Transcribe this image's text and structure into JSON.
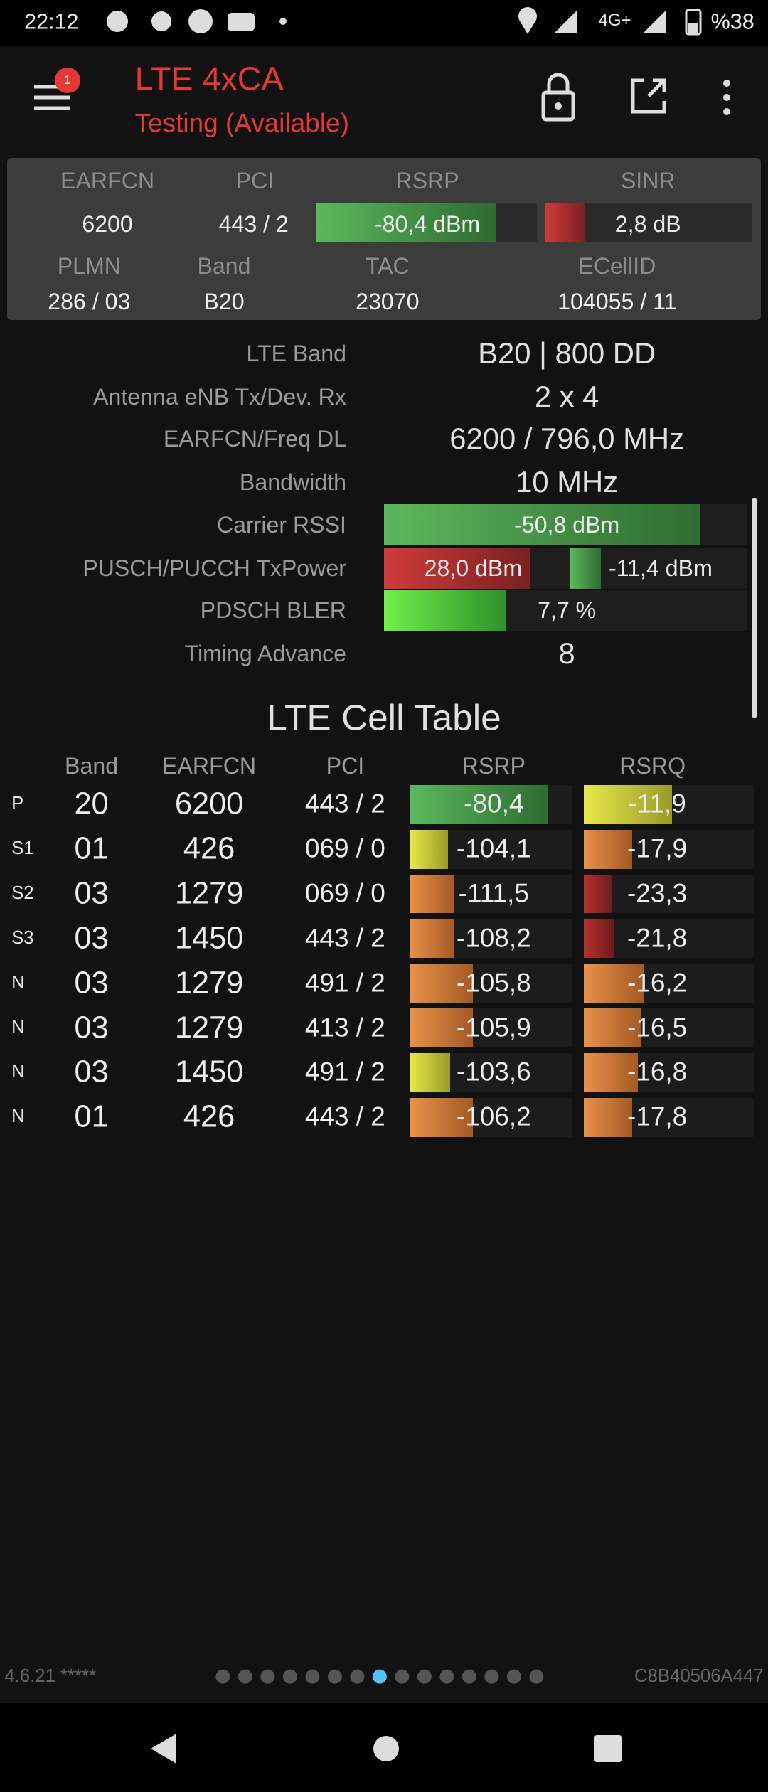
{
  "status_bar": {
    "time": "22:12",
    "network": "4G+",
    "battery": "%38"
  },
  "header": {
    "badge": "1",
    "title": "LTE 4xCA",
    "subtitle": "Testing (Available)"
  },
  "summary": {
    "row1": [
      {
        "label": "EARFCN",
        "value": "6200"
      },
      {
        "label": "PCI",
        "value": "443 / 2"
      },
      {
        "label": "RSRP",
        "value": "-80,4 dBm"
      },
      {
        "label": "SINR",
        "value": "2,8 dB"
      }
    ],
    "row2": [
      {
        "label": "PLMN",
        "value": "286 / 03"
      },
      {
        "label": "Band",
        "value": "B20"
      },
      {
        "label": "TAC",
        "value": "23070"
      },
      {
        "label": "ECellID",
        "value": "104055 / 11"
      }
    ]
  },
  "details": [
    {
      "label": "LTE Band",
      "values": [
        "B20 | 800 DD"
      ]
    },
    {
      "label": "Antenna eNB Tx/Dev. Rx",
      "values": [
        "2 x 4"
      ]
    },
    {
      "label": "EARFCN/Freq DL",
      "values": [
        "6200 / 796,0 MHz"
      ]
    },
    {
      "label": "Bandwidth",
      "values": [
        "10 MHz"
      ]
    },
    {
      "label": "Carrier RSSI",
      "values": [
        "-50,8 dBm"
      ]
    },
    {
      "label": "PUSCH/PUCCH TxPower",
      "values": [
        "28,0 dBm",
        "-11,4 dBm"
      ]
    },
    {
      "label": "PDSCH BLER",
      "values": [
        "7,7 %"
      ]
    },
    {
      "label": "Timing Advance",
      "values": [
        "8"
      ]
    }
  ],
  "cell_table": {
    "title": "LTE Cell Table",
    "columns": [
      "Band",
      "EARFCN",
      "PCI",
      "RSRP",
      "RSRQ"
    ],
    "rows": [
      [
        "P",
        "20",
        "6200",
        "443 / 2",
        "-80,4",
        "-11,9"
      ],
      [
        "S1",
        "01",
        "426",
        "069 / 0",
        "-104,1",
        "-17,9"
      ],
      [
        "S2",
        "03",
        "1279",
        "069 / 0",
        "-111,5",
        "-23,3"
      ],
      [
        "S3",
        "03",
        "1450",
        "443 / 2",
        "-108,2",
        "-21,8"
      ],
      [
        "N",
        "03",
        "1279",
        "491 / 2",
        "-105,8",
        "-16,2"
      ],
      [
        "N",
        "03",
        "1279",
        "413 / 2",
        "-105,9",
        "-16,5"
      ],
      [
        "N",
        "03",
        "1450",
        "491 / 2",
        "-103,6",
        "-16,8"
      ],
      [
        "N",
        "01",
        "426",
        "443 / 2",
        "-106,2",
        "-17,8"
      ]
    ]
  },
  "footer": {
    "version": "4.6.21 *****",
    "device_id": "C8B40506A447"
  }
}
